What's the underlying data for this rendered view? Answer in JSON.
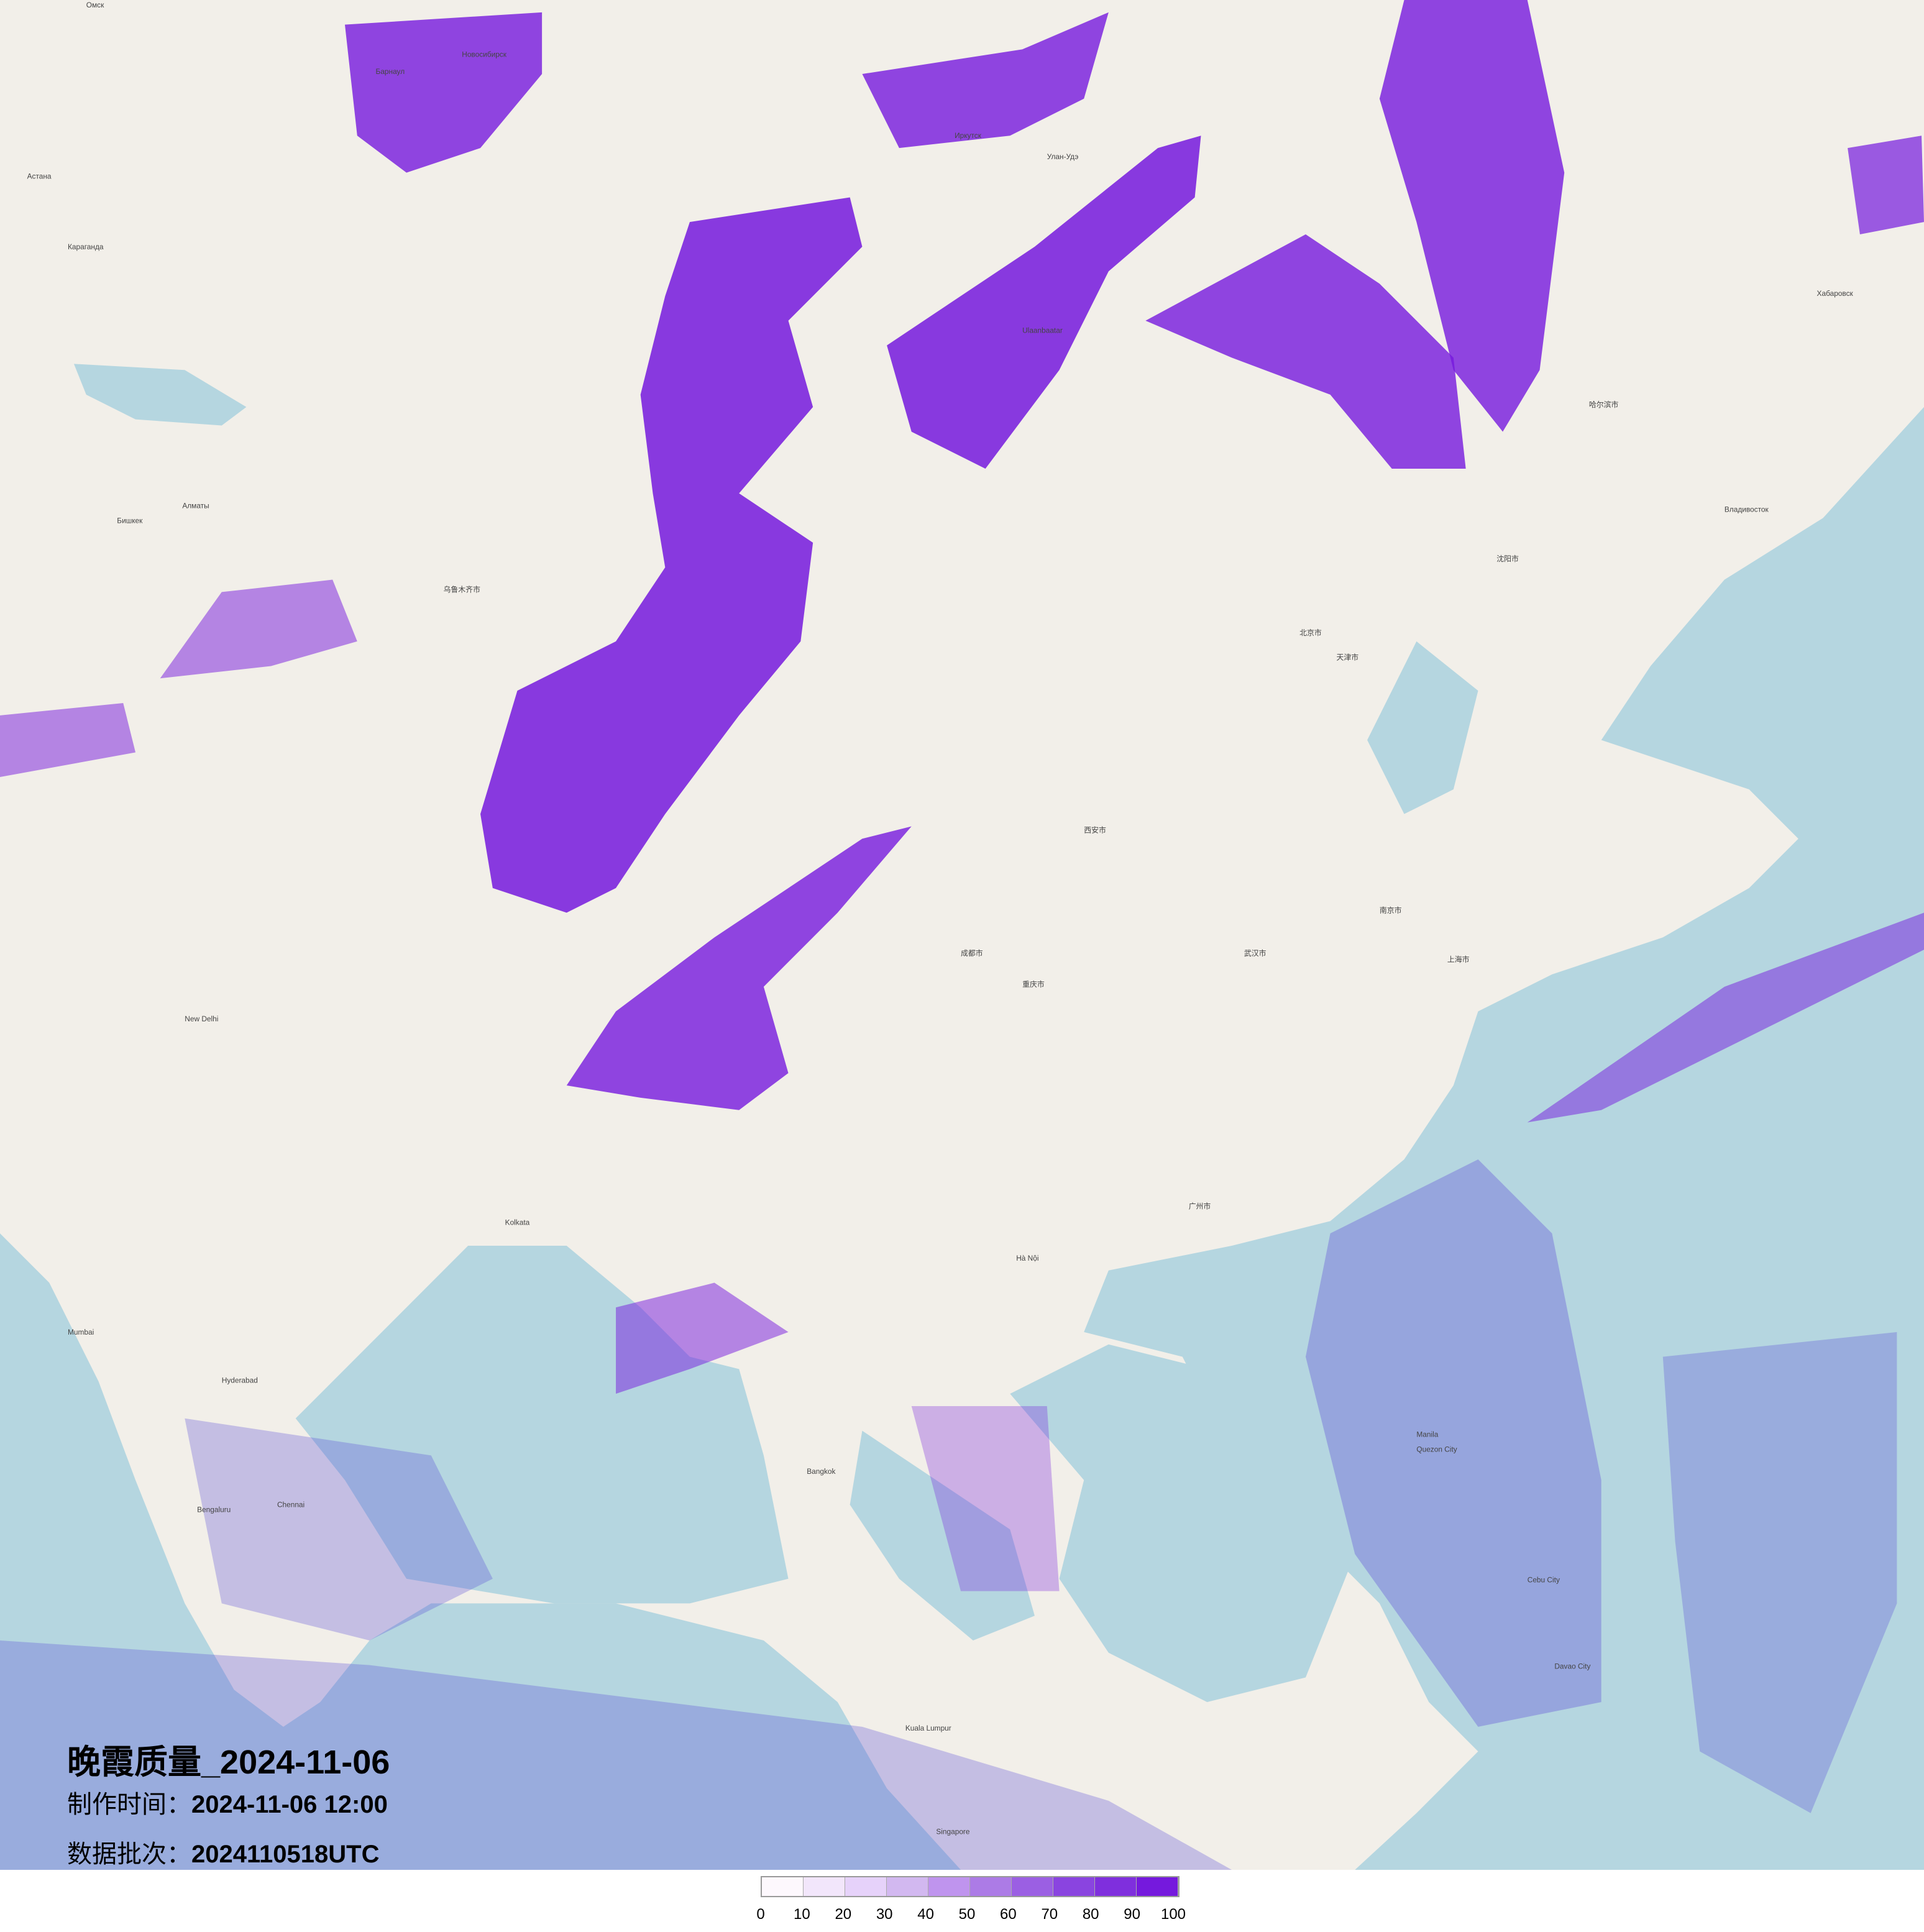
{
  "title": {
    "main": "晚霞质量_2024-11-06",
    "made_label": "制作时间：",
    "made_value": "2024-11-06 12:00",
    "batch_label": "数据批次：",
    "batch_value": "2024110518UTC"
  },
  "legend": {
    "ticks": [
      "0",
      "10",
      "20",
      "30",
      "40",
      "50",
      "60",
      "70",
      "80",
      "90",
      "100"
    ],
    "colors": [
      "#fdf8fd",
      "#f2e6fb",
      "#e6d2fa",
      "#d2b8f0",
      "#bf94ee",
      "#ac7be6",
      "#9b5fe3",
      "#8a44e0",
      "#7f2fdd",
      "#7519dd"
    ]
  },
  "map": {
    "land_color": "#f2efe9",
    "sea_color": "#b5d6e0",
    "overlay_color": "#7519dd",
    "labels": [
      "Омск",
      "Новосибирск",
      "Барнаул",
      "Иркутск",
      "Улан-Удэ",
      "Астана",
      "Караганда",
      "Алматы",
      "Бишкек",
      "Ulaanbaatar",
      "乌鲁木齐市",
      "北京市",
      "天津市",
      "上海市",
      "南京市",
      "武汉市",
      "重庆市",
      "成都市",
      "西安市",
      "广州市",
      "沈阳市",
      "哈尔滨市",
      "New Delhi",
      "Kolkata",
      "Mumbai",
      "Hyderabad",
      "Chennai",
      "Bengaluru",
      "Hà Nội",
      "Bangkok",
      "Kuala Lumpur",
      "Singapore",
      "Manila",
      "Quezon City",
      "Cebu City",
      "Davao City",
      "Хабаровск",
      "Владивосток"
    ]
  }
}
